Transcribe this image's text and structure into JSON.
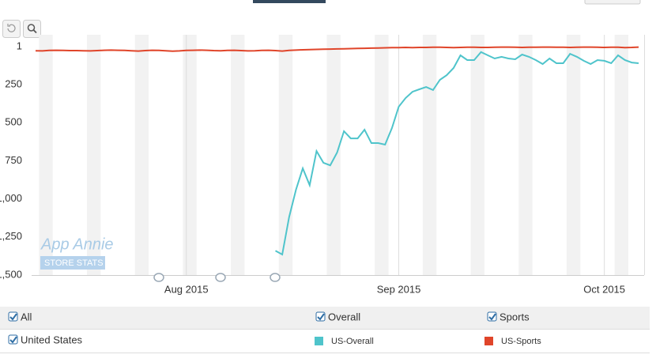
{
  "chart_data": {
    "type": "line",
    "categories": [
      null,
      null,
      null,
      null,
      null,
      null,
      null,
      null,
      null,
      null,
      null,
      null,
      null,
      null,
      null,
      null,
      null,
      null,
      null,
      null,
      null,
      null,
      "Aug 2015",
      null,
      null,
      null,
      null,
      null,
      null,
      null,
      null,
      null,
      null,
      null,
      null,
      null,
      null,
      null,
      null,
      null,
      null,
      null,
      null,
      null,
      null,
      null,
      null,
      null,
      null,
      null,
      null,
      null,
      null,
      "Sep 2015",
      null,
      null,
      null,
      null,
      null,
      null,
      null,
      null,
      null,
      null,
      null,
      null,
      null,
      null,
      null,
      null,
      null,
      null,
      null,
      null,
      null,
      null,
      null,
      null,
      null,
      null,
      null,
      null,
      null,
      "Oct 2015",
      null,
      null,
      null,
      null,
      null
    ],
    "series": [
      {
        "name": "US-Overall",
        "color": "#4fc4cb",
        "values": [
          null,
          null,
          null,
          null,
          null,
          null,
          null,
          null,
          null,
          null,
          null,
          null,
          null,
          null,
          null,
          null,
          null,
          null,
          null,
          null,
          null,
          null,
          null,
          null,
          null,
          null,
          null,
          null,
          null,
          null,
          null,
          null,
          null,
          null,
          null,
          1340,
          1365,
          1120,
          940,
          800,
          910,
          686,
          763,
          780,
          696,
          556,
          603,
          603,
          546,
          634,
          634,
          644,
          535,
          395,
          338,
          297,
          281,
          266,
          286,
          219,
          188,
          141,
          58,
          89,
          89,
          37,
          58,
          79,
          68,
          79,
          84,
          53,
          68,
          89,
          115,
          79,
          110,
          110,
          48,
          68,
          94,
          115,
          89,
          94,
          110,
          58,
          89,
          105,
          110
        ]
      },
      {
        "name": "US-Sports",
        "color": "#e0452a",
        "values": [
          28,
          29,
          26,
          25,
          26,
          27,
          27,
          28,
          29,
          27,
          25,
          24,
          25,
          26,
          28,
          30,
          27,
          25,
          26,
          28,
          31,
          29,
          26,
          25,
          24,
          25,
          27,
          28,
          26,
          25,
          27,
          29,
          28,
          26,
          25,
          27,
          30,
          26,
          24,
          22,
          20,
          19,
          18,
          17,
          16,
          15,
          14,
          13,
          12,
          11,
          10,
          9,
          8,
          7,
          6,
          7,
          6,
          6,
          5,
          5,
          6,
          7,
          6,
          5,
          5,
          6,
          6,
          5,
          4,
          4,
          5,
          6,
          5,
          5,
          4,
          4,
          5,
          5,
          6,
          5,
          4,
          4,
          5,
          6,
          5,
          5,
          7,
          6,
          4
        ]
      }
    ],
    "ylim": [
      1,
      1500
    ],
    "yticks": [
      1,
      250,
      500,
      750,
      {
        "value": 1000,
        "label": "1,000"
      },
      {
        "value": 1250,
        "label": "1,250"
      },
      {
        "value": 1500,
        "label": "1,500"
      }
    ],
    "inverted": true
  },
  "watermark": {
    "brand": "App Annie",
    "tag": "STORE STATS"
  },
  "filters": {
    "row1": [
      "All",
      "Overall",
      "Sports"
    ],
    "row2": [
      "United States"
    ]
  }
}
